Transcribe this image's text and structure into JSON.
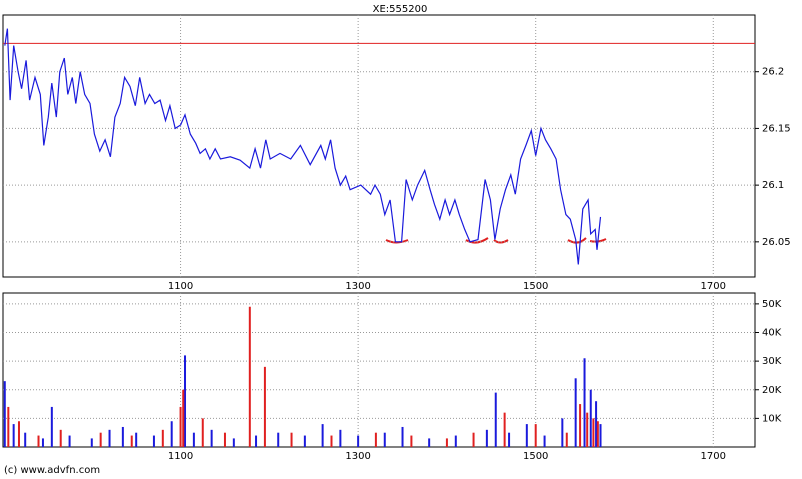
{
  "chart_data": [
    {
      "type": "line",
      "title": "XE:555200",
      "xlim": [
        900,
        1747
      ],
      "xticks": [
        1100,
        1300,
        1500,
        1700
      ],
      "ylim": [
        26.019,
        26.25
      ],
      "yticks": [
        26.05,
        26.1,
        26.15,
        26.2
      ],
      "hline": {
        "value": 26.225,
        "color": "#e02020"
      },
      "series": [
        {
          "color": "#1a1adc",
          "x": [
            902,
            905,
            908,
            912,
            917,
            921,
            926,
            930,
            936,
            942,
            946,
            951,
            955,
            960,
            964,
            969,
            973,
            978,
            982,
            987,
            992,
            998,
            1003,
            1009,
            1015,
            1021,
            1026,
            1032,
            1037,
            1043,
            1049,
            1054,
            1060,
            1065,
            1071,
            1077,
            1083,
            1088,
            1094,
            1100,
            1105,
            1111,
            1117,
            1122,
            1128,
            1133,
            1139,
            1145,
            1156,
            1167,
            1178,
            1184,
            1190,
            1196,
            1201,
            1212,
            1224,
            1235,
            1246,
            1258,
            1263,
            1269,
            1274,
            1280,
            1286,
            1291,
            1303,
            1314,
            1319,
            1325,
            1330,
            1336,
            1342,
            1349,
            1354,
            1361,
            1367,
            1375,
            1381,
            1386,
            1392,
            1398,
            1403,
            1409,
            1414,
            1420,
            1426,
            1435,
            1443,
            1449,
            1454,
            1460,
            1466,
            1472,
            1477,
            1483,
            1489,
            1495,
            1500,
            1506,
            1511,
            1517,
            1523,
            1528,
            1534,
            1539,
            1545,
            1548,
            1553,
            1559,
            1562,
            1567,
            1569,
            1573
          ],
          "values": [
            26.223,
            26.238,
            26.175,
            26.223,
            26.2,
            26.185,
            26.21,
            26.175,
            26.195,
            26.18,
            26.135,
            26.16,
            26.19,
            26.16,
            26.2,
            26.212,
            26.18,
            26.195,
            26.172,
            26.2,
            26.18,
            26.172,
            26.145,
            26.13,
            26.14,
            26.125,
            26.16,
            26.172,
            26.195,
            26.187,
            26.17,
            26.195,
            26.172,
            26.18,
            26.172,
            26.175,
            26.157,
            26.17,
            26.15,
            26.153,
            26.162,
            26.145,
            26.137,
            26.128,
            26.132,
            26.123,
            26.132,
            26.123,
            26.125,
            26.122,
            26.115,
            26.132,
            26.115,
            26.14,
            26.123,
            26.128,
            26.123,
            26.135,
            26.118,
            26.135,
            26.123,
            26.14,
            26.115,
            26.1,
            26.108,
            26.096,
            26.1,
            26.092,
            26.1,
            26.092,
            26.074,
            26.087,
            26.05,
            26.05,
            26.105,
            26.087,
            26.1,
            26.113,
            26.096,
            26.083,
            26.07,
            26.087,
            26.074,
            26.087,
            26.074,
            26.061,
            26.05,
            26.052,
            26.105,
            26.087,
            26.052,
            26.079,
            26.096,
            26.109,
            26.092,
            26.123,
            26.135,
            26.148,
            26.126,
            26.15,
            26.14,
            26.132,
            26.123,
            26.096,
            26.074,
            26.07,
            26.052,
            26.03,
            26.079,
            26.087,
            26.057,
            26.061,
            26.043,
            26.072
          ]
        }
      ]
    },
    {
      "type": "bar",
      "xlim": [
        900,
        1747
      ],
      "xticks": [
        1100,
        1300,
        1500,
        1700
      ],
      "ylim": [
        0,
        53800
      ],
      "yticks": [
        {
          "value": 10000,
          "label": "10K"
        },
        {
          "value": 20000,
          "label": "20K"
        },
        {
          "value": 30000,
          "label": "30K"
        },
        {
          "value": 40000,
          "label": "40K"
        },
        {
          "value": 50000,
          "label": "50K"
        }
      ],
      "series": [
        {
          "color": "#1a1adc",
          "x": [
            902,
            912,
            925,
            945,
            955,
            975,
            1000,
            1020,
            1035,
            1050,
            1070,
            1090,
            1105,
            1115,
            1135,
            1160,
            1185,
            1210,
            1240,
            1260,
            1280,
            1300,
            1330,
            1350,
            1380,
            1410,
            1445,
            1455,
            1470,
            1490,
            1510,
            1530,
            1545,
            1555,
            1562,
            1568,
            1573
          ],
          "values": [
            23000,
            8000,
            5000,
            3000,
            14000,
            4000,
            3000,
            6000,
            7000,
            5000,
            4000,
            9000,
            32000,
            5000,
            6000,
            3000,
            4000,
            5000,
            4000,
            8000,
            6000,
            4000,
            5000,
            7000,
            3000,
            4000,
            6000,
            19000,
            5000,
            8000,
            4000,
            10000,
            24000,
            31000,
            20000,
            16000,
            8000
          ]
        },
        {
          "color": "#e02020",
          "x": [
            906,
            918,
            940,
            965,
            1010,
            1045,
            1080,
            1100,
            1103,
            1125,
            1150,
            1178,
            1195,
            1225,
            1270,
            1320,
            1360,
            1400,
            1430,
            1465,
            1500,
            1535,
            1550,
            1558,
            1565,
            1570
          ],
          "values": [
            14000,
            9000,
            4000,
            6000,
            5000,
            4000,
            6000,
            14000,
            20000,
            10000,
            5000,
            49000,
            28000,
            5000,
            4000,
            5000,
            4000,
            3000,
            5000,
            12000,
            8000,
            5000,
            15000,
            12000,
            10000,
            9000
          ]
        }
      ]
    }
  ],
  "source": "(c) www.advfn.com"
}
